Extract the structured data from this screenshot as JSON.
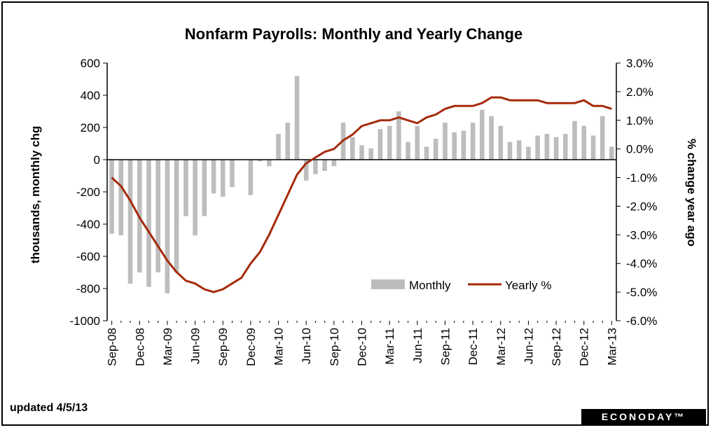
{
  "chart_data": {
    "type": "bar",
    "title": "Nonfarm Payrolls: Monthly and Yearly Change",
    "ylabel_left": "thousands, monthly chg",
    "ylabel_right": "% change year ago",
    "ylim_left": [
      -1000,
      600
    ],
    "ylim_right": [
      -6.0,
      3.0
    ],
    "yticks_left": [
      "600",
      "400",
      "200",
      "0",
      "-200",
      "-400",
      "-600",
      "-800",
      "-1000"
    ],
    "yticks_right": [
      "3.0%",
      "2.0%",
      "1.0%",
      "0.0%",
      "-1.0%",
      "-2.0%",
      "-3.0%",
      "-4.0%",
      "-5.0%",
      "-6.0%"
    ],
    "xtick_labels": [
      "Sep-08",
      "Dec-08",
      "Mar-09",
      "Jun-09",
      "Sep-09",
      "Dec-09",
      "Mar-10",
      "Jun-10",
      "Sep-10",
      "Dec-10",
      "Mar-11",
      "Jun-11",
      "Sep-11",
      "Dec-11",
      "Mar-12",
      "Jun-12",
      "Sep-12",
      "Dec-12",
      "Mar-13"
    ],
    "months": [
      "Sep-08",
      "Oct-08",
      "Nov-08",
      "Dec-08",
      "Jan-09",
      "Feb-09",
      "Mar-09",
      "Apr-09",
      "May-09",
      "Jun-09",
      "Jul-09",
      "Aug-09",
      "Sep-09",
      "Oct-09",
      "Nov-09",
      "Dec-09",
      "Jan-10",
      "Feb-10",
      "Mar-10",
      "Apr-10",
      "May-10",
      "Jun-10",
      "Jul-10",
      "Aug-10",
      "Sep-10",
      "Oct-10",
      "Nov-10",
      "Dec-10",
      "Jan-11",
      "Feb-11",
      "Mar-11",
      "Apr-11",
      "May-11",
      "Jun-11",
      "Jul-11",
      "Aug-11",
      "Sep-11",
      "Oct-11",
      "Nov-11",
      "Dec-11",
      "Jan-12",
      "Feb-12",
      "Mar-12",
      "Apr-12",
      "May-12",
      "Jun-12",
      "Jul-12",
      "Aug-12",
      "Sep-12",
      "Oct-12",
      "Nov-12",
      "Dec-12",
      "Jan-13",
      "Feb-13",
      "Mar-13"
    ],
    "series": [
      {
        "name": "Monthly",
        "axis": "left",
        "color": "#bdbdbd",
        "values": [
          -460,
          -470,
          -770,
          -700,
          -790,
          -700,
          -830,
          -700,
          -350,
          -470,
          -350,
          -210,
          -230,
          -170,
          0,
          -220,
          -10,
          -40,
          160,
          230,
          520,
          -130,
          -90,
          -70,
          -40,
          230,
          140,
          90,
          70,
          190,
          210,
          300,
          110,
          210,
          80,
          130,
          230,
          170,
          180,
          230,
          310,
          270,
          210,
          110,
          120,
          80,
          150,
          160,
          140,
          160,
          240,
          210,
          150,
          270,
          80
        ]
      },
      {
        "name": "Yearly %",
        "axis": "right",
        "color": "#a52a0a",
        "values": [
          -1.0,
          -1.3,
          -1.8,
          -2.4,
          -2.9,
          -3.4,
          -3.9,
          -4.3,
          -4.6,
          -4.7,
          -4.9,
          -5.0,
          -4.9,
          -4.7,
          -4.5,
          -4.0,
          -3.6,
          -3.0,
          -2.3,
          -1.6,
          -0.9,
          -0.5,
          -0.3,
          -0.1,
          0.0,
          0.3,
          0.5,
          0.8,
          0.9,
          1.0,
          1.0,
          1.1,
          1.0,
          0.9,
          1.1,
          1.2,
          1.4,
          1.5,
          1.5,
          1.5,
          1.6,
          1.8,
          1.8,
          1.7,
          1.7,
          1.7,
          1.7,
          1.6,
          1.6,
          1.6,
          1.6,
          1.7,
          1.5,
          1.5,
          1.4
        ]
      }
    ],
    "legend": {
      "position": "bottom-right",
      "monthly_label": "Monthly",
      "yearly_label": "Yearly %"
    }
  },
  "footer": {
    "updated": "updated 4/5/13",
    "logo": "ECONODAY™"
  }
}
